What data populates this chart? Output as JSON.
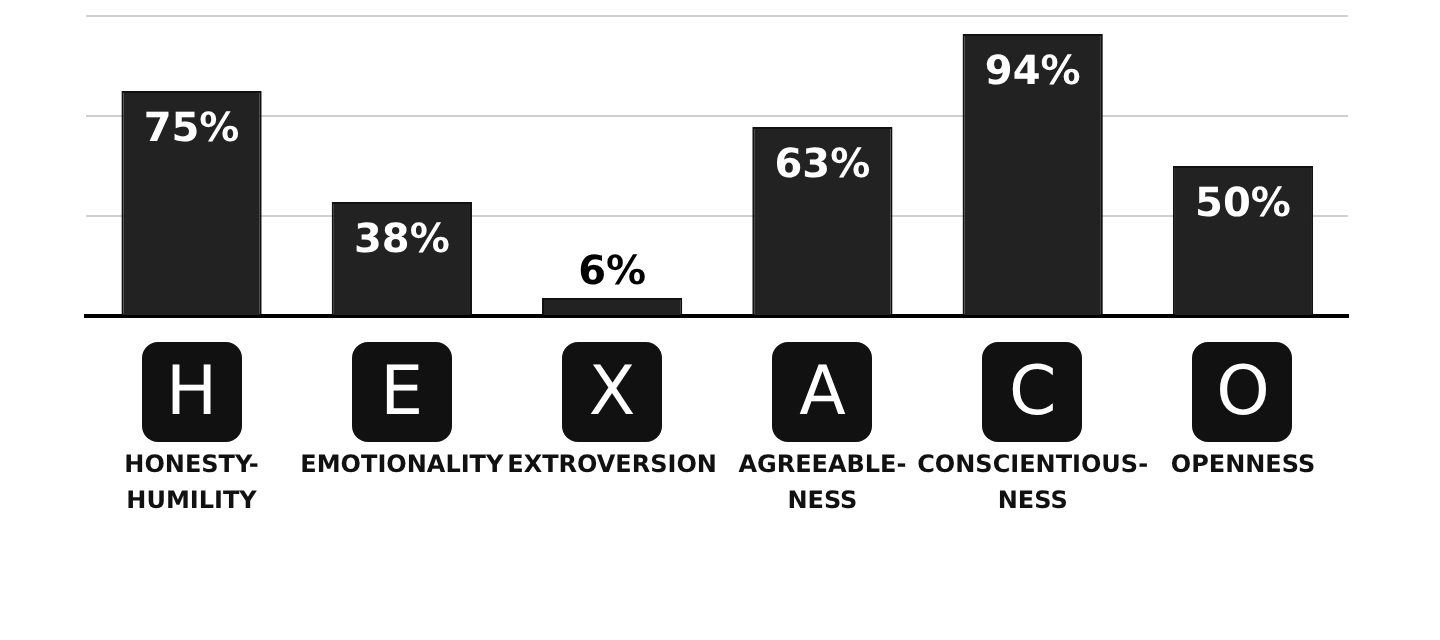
{
  "chart_data": {
    "type": "bar",
    "categories": [
      "HONESTY-HUMILITY",
      "EMOTIONALITY",
      "EXTROVERSION",
      "AGREEABLE-NESS",
      "CONSCIENTIOUS-NESS",
      "OPENNESS"
    ],
    "values": [
      75,
      38,
      6,
      63,
      94,
      50
    ],
    "color": "#222222",
    "value_labels": [
      "75%",
      "38%",
      "6%",
      "63%",
      "94%",
      "50%"
    ],
    "annotations": [
      "H",
      "E",
      "X",
      "A",
      "C",
      "O"
    ],
    "ylim": [
      0,
      100
    ],
    "yticks": [
      {
        "value": 0,
        "label": null
      },
      {
        "value": 33.3,
        "label": null
      },
      {
        "value": 66.7,
        "label": null
      },
      {
        "value": 100,
        "label": null
      }
    ],
    "grid": "y",
    "tick_labels": "x",
    "legend": false
  }
}
